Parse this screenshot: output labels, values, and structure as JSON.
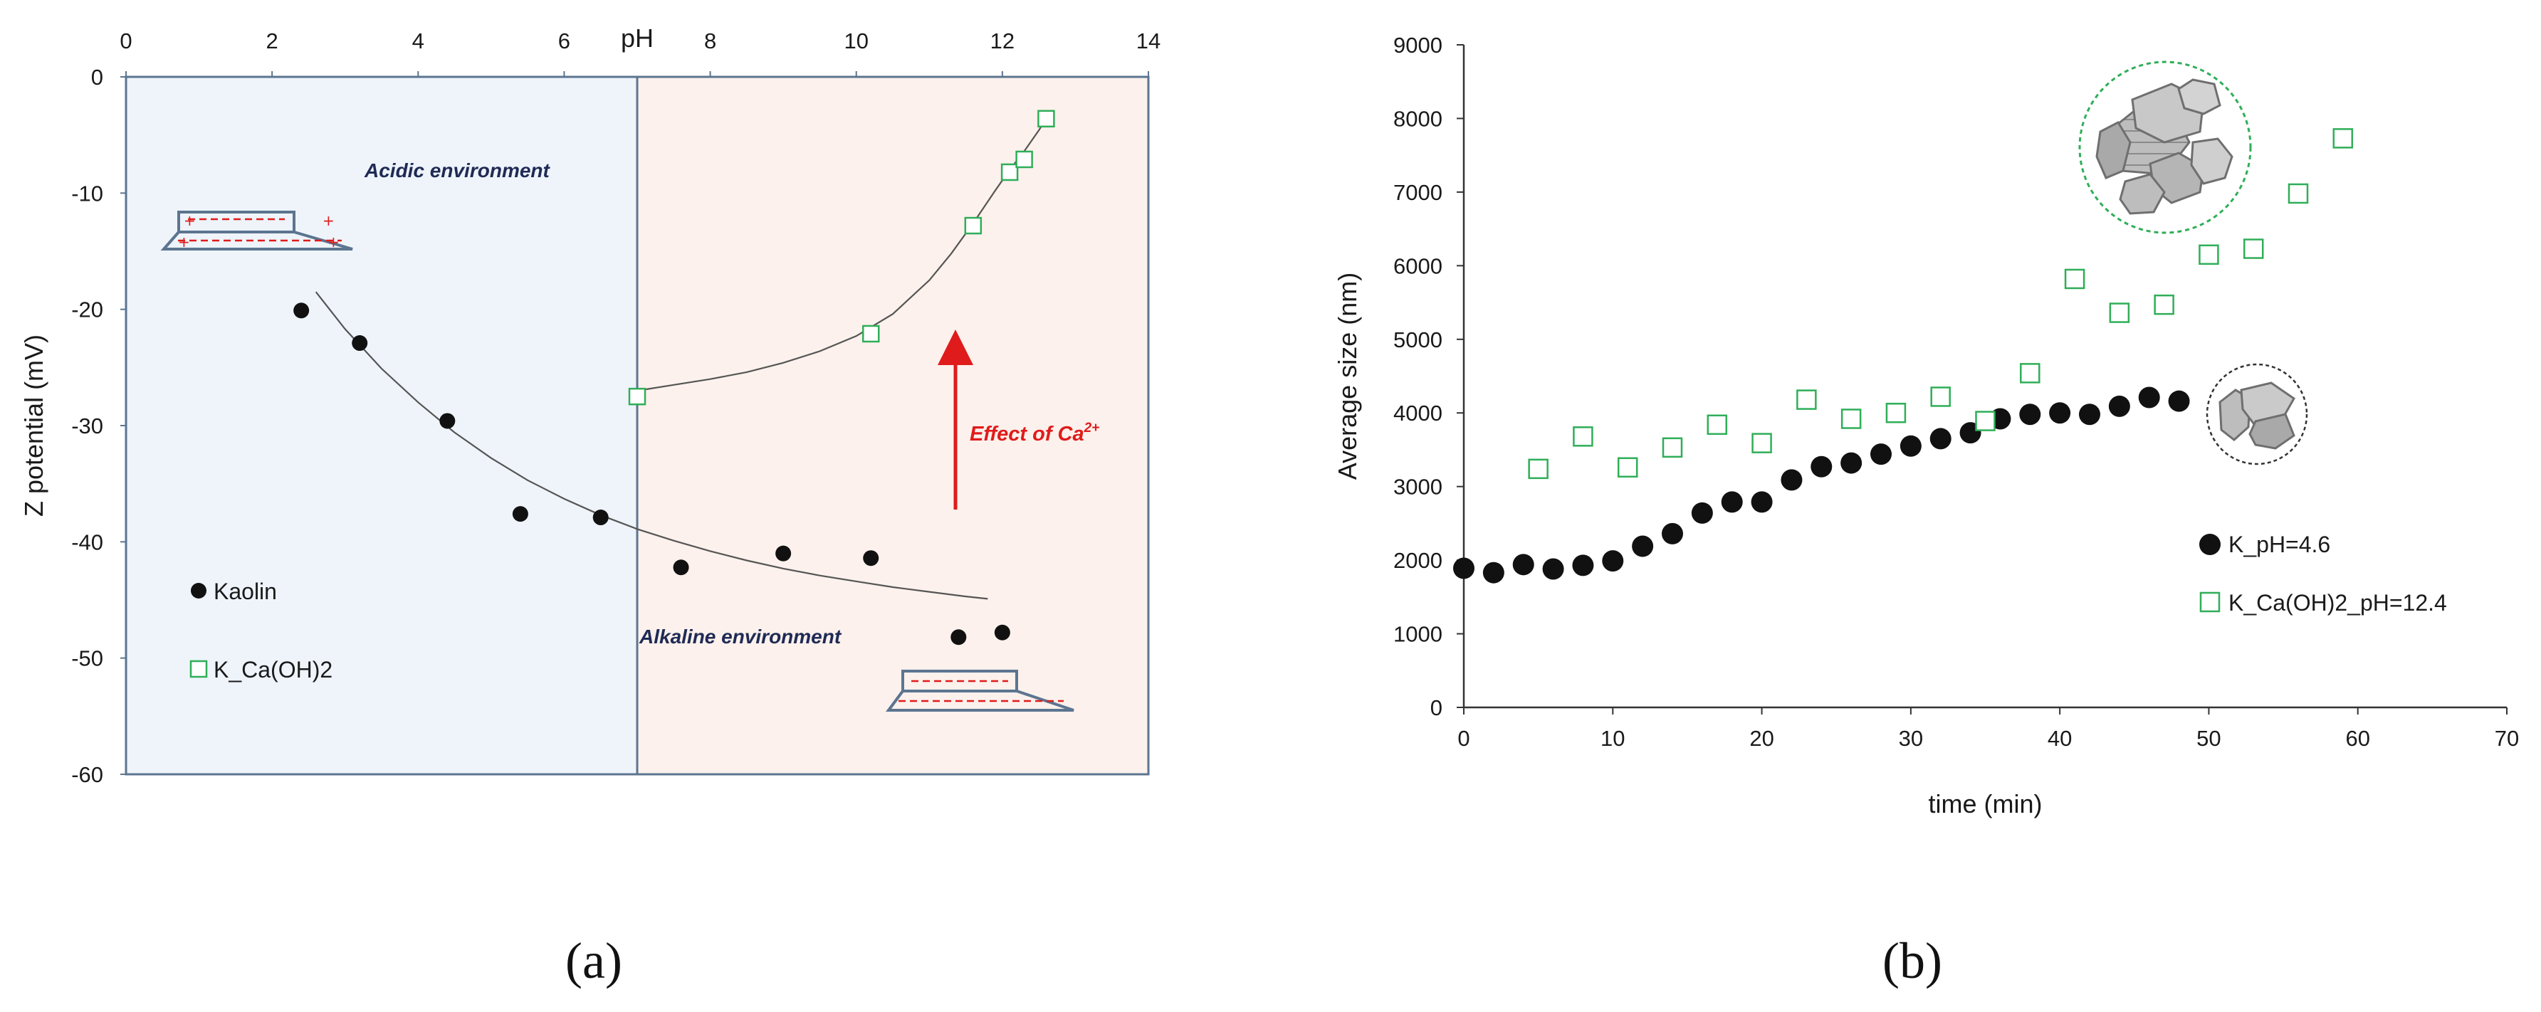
{
  "colors": {
    "acidic_bg": "#eef4fa",
    "alkaline_bg": "#fcf1ec",
    "frame": "#5c7590",
    "kaolin_marker": "#111111",
    "caoh2_marker": "#2fae58",
    "fit_line": "#555555",
    "arrow": "#e01b1b",
    "env_text": "#1f2a55"
  },
  "panel_labels": [
    "(a)",
    "(b)"
  ],
  "chart_data": [
    {
      "type": "scatter",
      "title": "",
      "xlabel": "pH",
      "ylabel": "Z potential (mV)",
      "xlim": [
        0,
        14
      ],
      "ylim": [
        -60,
        0
      ],
      "x_ticks": [
        "0",
        "2",
        "4",
        "6",
        "8",
        "10",
        "12",
        "14"
      ],
      "y_ticks": [
        "0",
        "-10",
        "-20",
        "-30",
        "-40",
        "-50",
        "-60"
      ],
      "x_axis_position": "top",
      "grid": false,
      "legend_position": "bottom-left",
      "region_boundary_ph": 7,
      "series": [
        {
          "name": "Kaolin",
          "marker": "filled-circle",
          "x": [
            2.4,
            3.2,
            4.4,
            5.4,
            6.5,
            7.6,
            9.0,
            10.2,
            11.4,
            12.0
          ],
          "y": [
            -20.1,
            -22.9,
            -29.6,
            -37.6,
            -37.9,
            -42.2,
            -41.0,
            -41.4,
            -48.2,
            -47.8
          ]
        },
        {
          "name": "K_Ca(OH)2",
          "marker": "open-square",
          "x": [
            7.0,
            10.2,
            11.6,
            12.1,
            12.3,
            12.6
          ],
          "y": [
            -27.5,
            -22.1,
            -12.8,
            -8.2,
            -7.1,
            -3.6
          ]
        }
      ],
      "fit_curves": [
        {
          "series": "Kaolin",
          "x": [
            2.6,
            3.0,
            3.5,
            4.0,
            4.5,
            5.0,
            5.5,
            6.0,
            6.5,
            7.0,
            7.5,
            8.0,
            8.5,
            9.0,
            9.5,
            10.0,
            10.5,
            11.0,
            11.5,
            11.8
          ],
          "y": [
            -18.5,
            -21.7,
            -25.1,
            -28.0,
            -30.6,
            -32.8,
            -34.7,
            -36.3,
            -37.7,
            -38.9,
            -39.9,
            -40.8,
            -41.6,
            -42.3,
            -42.9,
            -43.4,
            -43.9,
            -44.3,
            -44.7,
            -44.9
          ]
        },
        {
          "series": "K_Ca(OH)2",
          "x": [
            7.0,
            7.5,
            8.0,
            8.5,
            9.0,
            9.5,
            10.0,
            10.5,
            11.0,
            11.3,
            11.6,
            11.9,
            12.1,
            12.3,
            12.5,
            12.6
          ],
          "y": [
            -27.0,
            -26.5,
            -26.0,
            -25.4,
            -24.6,
            -23.6,
            -22.3,
            -20.4,
            -17.5,
            -15.2,
            -12.6,
            -9.8,
            -8.0,
            -6.4,
            -4.6,
            -3.6
          ]
        }
      ],
      "annotations": {
        "acidic": "Acidic environment",
        "alkaline": "Alkaline environment",
        "effect_main": "Effect of Ca",
        "effect_sup": "2+"
      }
    },
    {
      "type": "scatter",
      "title": "",
      "xlabel": "time (min)",
      "ylabel": "Average size (nm)",
      "xlim": [
        0,
        70
      ],
      "ylim": [
        0,
        9000
      ],
      "x_ticks": [
        "0",
        "10",
        "20",
        "30",
        "40",
        "50",
        "60",
        "70"
      ],
      "y_ticks": [
        "0",
        "1000",
        "2000",
        "3000",
        "4000",
        "5000",
        "6000",
        "7000",
        "8000",
        "9000"
      ],
      "grid": false,
      "legend_position": "bottom-right",
      "series": [
        {
          "name": "K_pH=4.6",
          "marker": "filled-circle",
          "x": [
            0,
            2,
            4,
            6,
            8,
            10,
            12,
            14,
            16,
            18,
            20,
            22,
            24,
            26,
            28,
            30,
            32,
            34,
            36,
            38,
            40,
            42,
            44,
            46,
            48
          ],
          "y": [
            1890,
            1830,
            1940,
            1880,
            1930,
            1990,
            2190,
            2360,
            2640,
            2790,
            2790,
            3090,
            3270,
            3320,
            3440,
            3550,
            3650,
            3730,
            3920,
            3980,
            4000,
            3980,
            4090,
            4210,
            4160
          ]
        },
        {
          "name": "K_Ca(OH)2_pH=12.4",
          "marker": "open-square",
          "x": [
            5,
            8,
            11,
            14,
            17,
            20,
            23,
            26,
            29,
            32,
            35,
            38,
            41,
            44,
            47,
            50,
            53,
            56,
            59
          ],
          "y": [
            3240,
            3680,
            3260,
            3530,
            3840,
            3590,
            4180,
            3920,
            4000,
            4220,
            3890,
            4540,
            5820,
            5360,
            5470,
            6150,
            6230,
            6980,
            7730
          ]
        }
      ]
    }
  ]
}
